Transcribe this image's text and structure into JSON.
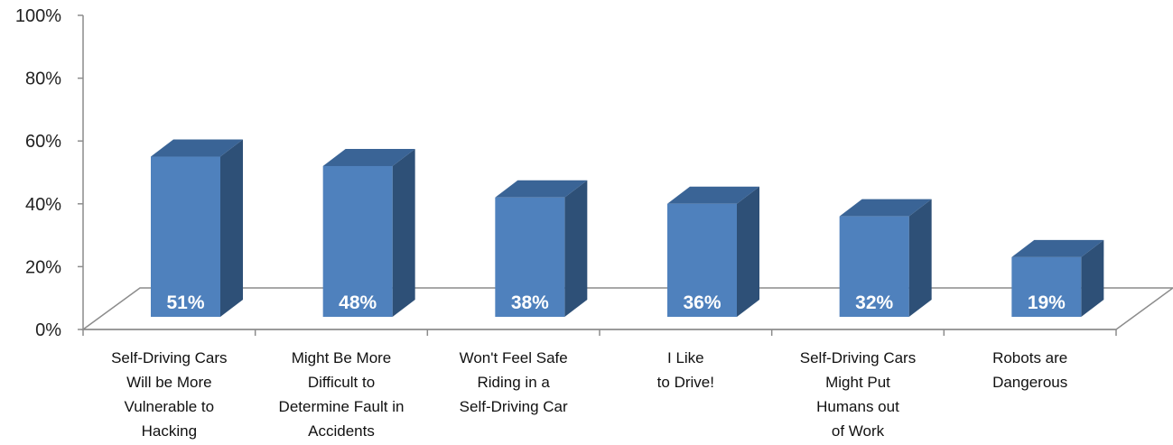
{
  "chart_data": {
    "type": "bar",
    "style": "3d-column",
    "categories": [
      [
        "Self-Driving Cars",
        "Will be More",
        "Vulnerable to",
        "Hacking"
      ],
      [
        "Might Be More",
        "Difficult to",
        "Determine Fault in",
        "Accidents"
      ],
      [
        "Won't Feel Safe",
        "Riding in a",
        "Self-Driving Car"
      ],
      [
        "I Like",
        "to Drive!"
      ],
      [
        "Self-Driving Cars",
        "Might Put",
        "Humans out",
        "of Work"
      ],
      [
        "Robots are",
        "Dangerous"
      ]
    ],
    "values": [
      51,
      48,
      38,
      36,
      32,
      19
    ],
    "data_labels": [
      "51%",
      "48%",
      "38%",
      "36%",
      "32%",
      "19%"
    ],
    "yticks": [
      "0%",
      "20%",
      "40%",
      "60%",
      "80%",
      "100%"
    ],
    "ylim": [
      0,
      100
    ],
    "grid": false,
    "legend": "none",
    "colors": {
      "front": "#4F81BD",
      "top": "#3A6496",
      "side": "#2E5077",
      "axis": "#8C8C8C"
    }
  }
}
